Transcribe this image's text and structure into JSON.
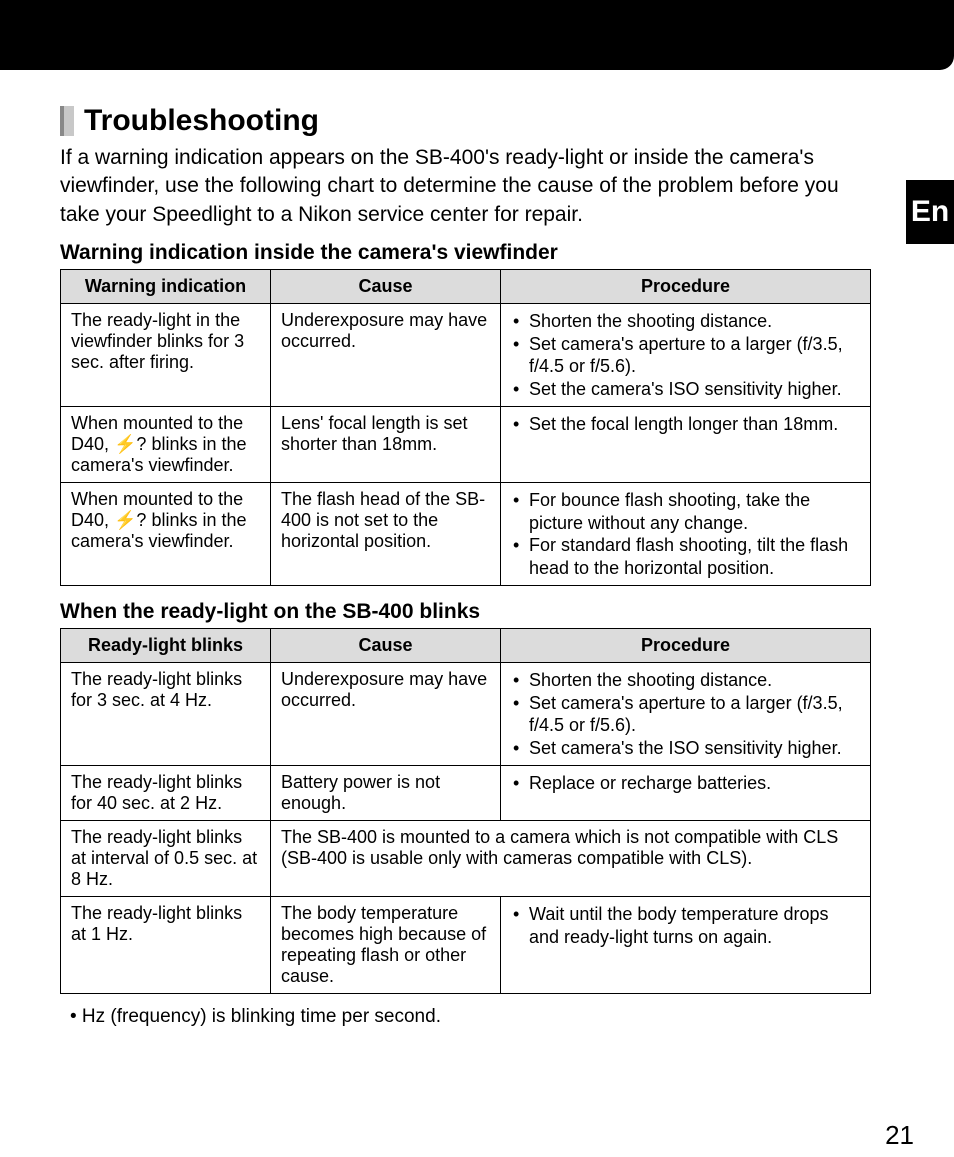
{
  "side_tab": "En",
  "page_number": "21",
  "heading": "Troubleshooting",
  "intro": "If a warning indication appears on the SB-400's ready-light or inside the camera's viewfinder, use the following chart to determine the cause of the problem before you take your Speedlight to a Nikon service center for repair.",
  "section1": {
    "title": "Warning indication inside the camera's viewfinder",
    "headers": {
      "c1": "Warning indication",
      "c2": "Cause",
      "c3": "Procedure"
    },
    "rows": [
      {
        "indication": "The ready-light in the viewfinder blinks for 3 sec. after firing.",
        "cause": "Underexposure may have occurred.",
        "procedure": [
          "Shorten the shooting distance.",
          "Set camera's aperture to a larger (f/3.5, f/4.5 or f/5.6).",
          "Set the camera's ISO sensitivity higher."
        ]
      },
      {
        "indication": "When mounted to the D40, ⚡? blinks in the camera's viewfinder.",
        "cause": "Lens' focal length is set shorter than 18mm.",
        "procedure": [
          "Set the focal length longer than 18mm."
        ]
      },
      {
        "indication": "When mounted to the D40, ⚡? blinks in the camera's viewfinder.",
        "cause": "The flash head of the SB-400 is not set to the horizontal position.",
        "procedure": [
          "For bounce flash shooting, take the picture without any change.",
          "For standard flash shooting, tilt the flash head to the horizontal position."
        ]
      }
    ]
  },
  "section2": {
    "title": "When the ready-light on the SB-400 blinks",
    "headers": {
      "c1": "Ready-light blinks",
      "c2": "Cause",
      "c3": "Procedure"
    },
    "rows": [
      {
        "indication": "The ready-light blinks for 3 sec. at 4 Hz.",
        "cause": "Underexposure may have occurred.",
        "procedure": [
          "Shorten the shooting distance.",
          "Set camera's aperture to a larger (f/3.5, f/4.5 or f/5.6).",
          "Set camera's the ISO sensitivity higher."
        ]
      },
      {
        "indication": "The ready-light blinks for 40 sec. at 2 Hz.",
        "cause": "Battery power is not enough.",
        "procedure": [
          "Replace or recharge batteries."
        ]
      },
      {
        "indication": "The ready-light blinks at interval of 0.5 sec. at 8 Hz.",
        "merged_cause_procedure": "The SB-400 is mounted to a camera which is not compatible with CLS (SB-400 is usable only with cameras compatible with CLS)."
      },
      {
        "indication": "The ready-light blinks at 1 Hz.",
        "cause": "The body temperature becomes high because of repeating flash or other cause.",
        "procedure": [
          "Wait until the body temperature drops and ready-light turns on again."
        ]
      }
    ]
  },
  "footnote": "• Hz (frequency) is blinking time per second.",
  "colors": {
    "header_bg": "#dcdcdc",
    "border": "#000000",
    "topbar": "#000000",
    "heading_bar": "#c8c8c8"
  }
}
